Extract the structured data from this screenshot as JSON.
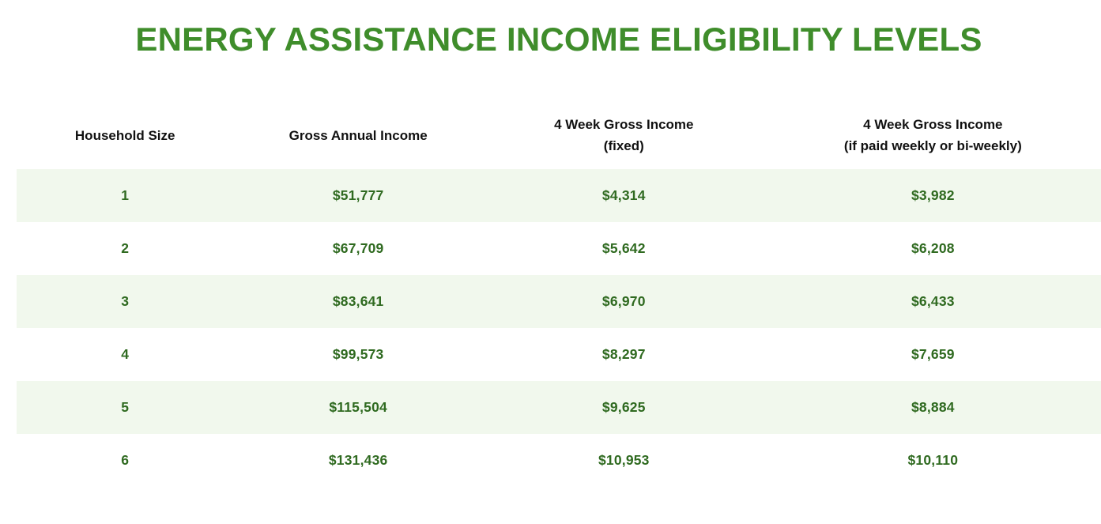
{
  "title": "ENERGY ASSISTANCE INCOME ELIGIBILITY LEVELS",
  "colors": {
    "title_green": "#3F8D2B",
    "value_green": "#2F6A20",
    "stripe": "#F1F8ED",
    "header_text": "#111111",
    "page_bg": "#FFFFFF"
  },
  "table": {
    "columns": [
      {
        "label": "Household Size",
        "sub": ""
      },
      {
        "label": "Gross Annual Income",
        "sub": ""
      },
      {
        "label": "4 Week Gross Income",
        "sub": "(fixed)"
      },
      {
        "label": "4 Week Gross Income",
        "sub": "(if paid weekly or bi-weekly)"
      }
    ],
    "rows": [
      [
        "1",
        "$51,777",
        "$4,314",
        "$3,982"
      ],
      [
        "2",
        "$67,709",
        "$5,642",
        "$6,208"
      ],
      [
        "3",
        "$83,641",
        "$6,970",
        "$6,433"
      ],
      [
        "4",
        "$99,573",
        "$8,297",
        "$7,659"
      ],
      [
        "5",
        "$115,504",
        "$9,625",
        "$8,884"
      ],
      [
        "6",
        "$131,436",
        "$10,953",
        "$10,110"
      ]
    ]
  },
  "chart_data": {
    "type": "table",
    "title": "ENERGY ASSISTANCE INCOME ELIGIBILITY LEVELS",
    "columns": [
      "Household Size",
      "Gross Annual Income",
      "4 Week Gross Income (fixed)",
      "4 Week Gross Income (if paid weekly or bi-weekly)"
    ],
    "rows": [
      [
        1,
        51777,
        4314,
        3982
      ],
      [
        2,
        67709,
        5642,
        6208
      ],
      [
        3,
        83641,
        6970,
        6433
      ],
      [
        4,
        99573,
        8297,
        7659
      ],
      [
        5,
        115504,
        9625,
        8884
      ],
      [
        6,
        131436,
        10953,
        10110
      ]
    ],
    "layout_hints": {
      "value_format": "USD with thousands separators",
      "row_striping": "odd rows pale green, even rows white",
      "alignment": "all columns centered"
    }
  }
}
